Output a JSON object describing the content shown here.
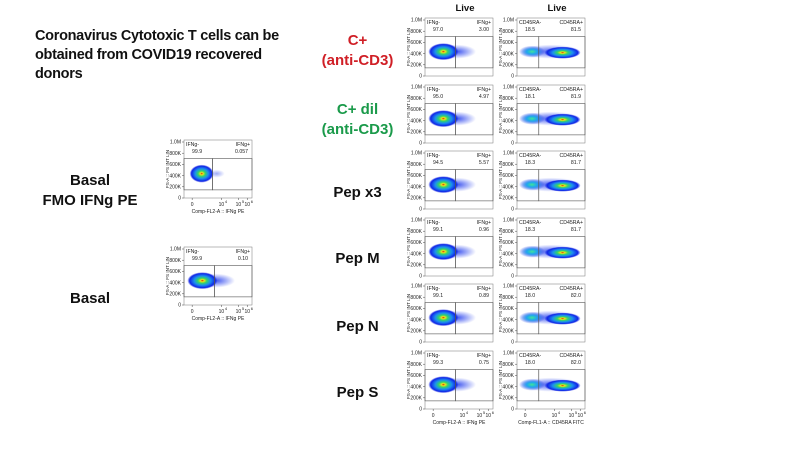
{
  "title": "Coronavirus Cytotoxic T cells can be obtained from COVID19 recovered donors",
  "colors": {
    "positive_control": "#d01f26",
    "diluted_control": "#1a9a4a",
    "text": "#111111"
  },
  "column_headers": [
    "Live",
    "Live"
  ],
  "left_panel": {
    "rows": [
      {
        "label_line1": "Basal",
        "label_line2": "FMO IFNg PE",
        "gate_left": "IFNg-",
        "val_left": "99.9",
        "gate_right": "IFNg+",
        "val_right": "0.057"
      },
      {
        "label_line1": "Basal",
        "label_line2": "",
        "gate_left": "IFNg-",
        "val_left": "99.9",
        "gate_right": "IFNg+",
        "val_right": "0.10"
      }
    ],
    "x_axis_label": "Comp-FL2-A :: IFNg PE",
    "y_axis_label": "FS-A :: FS INT LIN"
  },
  "grid": {
    "rows": [
      {
        "label_line1": "C+",
        "label_line2": "(anti-CD3)",
        "color": "#d01f26",
        "ifng": {
          "left": "IFNg-",
          "lval": "97.0",
          "right": "IFNg+",
          "rval": "3.00"
        },
        "cd45": {
          "left": "CD45RA-",
          "lval": "18.5",
          "right": "CD45RA+",
          "rval": "81.5"
        }
      },
      {
        "label_line1": "C+ dil",
        "label_line2": "(anti-CD3)",
        "color": "#1a9a4a",
        "ifng": {
          "left": "IFNg-",
          "lval": "95.0",
          "right": "IFNg+",
          "rval": "4.97"
        },
        "cd45": {
          "left": "CD45RA-",
          "lval": "18.1",
          "right": "CD45RA+",
          "rval": "81.9"
        }
      },
      {
        "label_line1": "Pep x3",
        "label_line2": "",
        "color": "#111111",
        "ifng": {
          "left": "IFNg-",
          "lval": "94.5",
          "right": "IFNg+",
          "rval": "5.57"
        },
        "cd45": {
          "left": "CD45RA-",
          "lval": "18.3",
          "right": "CD45RA+",
          "rval": "81.7"
        }
      },
      {
        "label_line1": "Pep M",
        "label_line2": "",
        "color": "#111111",
        "ifng": {
          "left": "IFNg-",
          "lval": "99.1",
          "right": "IFNg+",
          "rval": "0.96"
        },
        "cd45": {
          "left": "CD45RA-",
          "lval": "18.3",
          "right": "CD45RA+",
          "rval": "81.7"
        }
      },
      {
        "label_line1": "Pep N",
        "label_line2": "",
        "color": "#111111",
        "ifng": {
          "left": "IFNg-",
          "lval": "99.1",
          "right": "IFNg+",
          "rval": "0.89"
        },
        "cd45": {
          "left": "CD45RA-",
          "lval": "18.0",
          "right": "CD45RA+",
          "rval": "82.0"
        }
      },
      {
        "label_line1": "Pep S",
        "label_line2": "",
        "color": "#111111",
        "ifng": {
          "left": "IFNg-",
          "lval": "99.3",
          "right": "IFNg+",
          "rval": "0.75"
        },
        "cd45": {
          "left": "CD45RA-",
          "lval": "18.0",
          "right": "CD45RA+",
          "rval": "82.0"
        }
      }
    ],
    "x_axis_label_ifng": "Comp-FL2-A :: IFNg PE",
    "x_axis_label_cd45": "Comp-FL1-A :: CD45RA FITC",
    "y_axis_label": "FS-A :: FS INT LIN"
  },
  "axes": {
    "y_ticks": [
      "1.0M",
      "800K",
      "600K",
      "400K",
      "200K",
      "0"
    ],
    "x_ticks": [
      "0",
      "10^4",
      "10^5",
      "10^6"
    ]
  }
}
